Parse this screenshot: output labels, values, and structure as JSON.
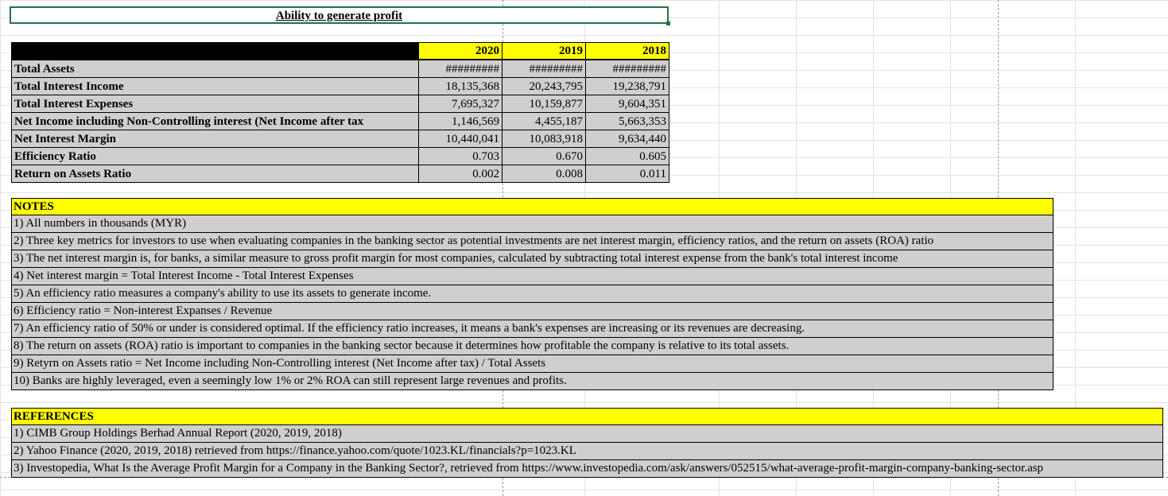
{
  "title": "Ability to generate profit",
  "years": [
    "2020",
    "2019",
    "2018"
  ],
  "rows": [
    {
      "label": "Total Assets",
      "values": [
        "#########",
        "#########",
        "#########"
      ]
    },
    {
      "label": "Total Interest Income",
      "values": [
        "18,135,368",
        "20,243,795",
        "19,238,791"
      ]
    },
    {
      "label": "Total Interest Expenses",
      "values": [
        "7,695,327",
        "10,159,877",
        "9,604,351"
      ]
    },
    {
      "label": "Net Income including Non-Controlling interest (Net Income after tax",
      "values": [
        "1,146,569",
        "4,455,187",
        "5,663,353"
      ]
    },
    {
      "label": "Net Interest Margin",
      "values": [
        "10,440,041",
        "10,083,918",
        "9,634,440"
      ]
    },
    {
      "label": "Efficiency Ratio",
      "values": [
        "0.703",
        "0.670",
        "0.605"
      ]
    },
    {
      "label": "Return on Assets Ratio",
      "values": [
        "0.002",
        "0.008",
        "0.011"
      ]
    }
  ],
  "notes": {
    "header": "NOTES",
    "items": [
      "1) All numbers in thousands (MYR)",
      "2) Three key metrics for investors to use when evaluating companies in the banking sector as potential investments are net interest margin, efficiency ratios, and the return on assets (ROA) ratio",
      "3) The net interest margin is, for banks, a similar measure to gross profit margin for most companies, calculated by subtracting total interest expense from the bank's total interest income",
      "4) Net interest margin = Total Interest Income - Total Interest Expenses",
      "5) An efficiency ratio measures a company's ability to use its assets to generate income.",
      "6) Efficiency ratio = Non-interest Expanses / Revenue",
      "7) An efficiency ratio of 50% or under is considered optimal. If the efficiency ratio increases, it means a bank's expenses are increasing or its revenues are decreasing.",
      "8) The return on assets (ROA) ratio is important to companies in the banking sector because it determines how profitable the company is relative to its total assets.",
      "9) Retyrn on Assets ratio = Net Income including Non-Controlling interest (Net Income after tax) / Total Assets",
      "10) Banks are highly leveraged, even a seemingly low 1% or 2% ROA can still represent large revenues and profits."
    ]
  },
  "references": {
    "header": "REFERENCES",
    "items": [
      "1) CIMB Group Holdings Berhad Annual Report (2020, 2019, 2018)",
      "2) Yahoo Finance (2020, 2019, 2018) retrieved from https://finance.yahoo.com/quote/1023.KL/financials?p=1023.KL",
      "3) Investopedia, What Is the Average Profit Margin for a Company in the Banking Sector?, retrieved from https://www.investopedia.com/ask/answers/052515/what-average-profit-margin-company-banking-sector.asp"
    ]
  },
  "colors": {
    "header_fill": "#ffff00",
    "cell_fill": "#d0cece",
    "selection": "#217346"
  }
}
